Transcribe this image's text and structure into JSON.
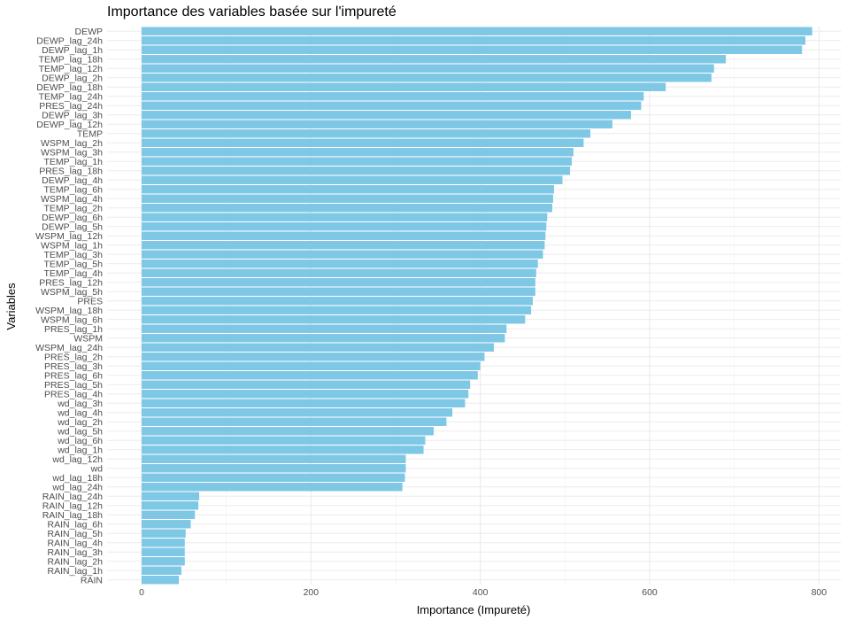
{
  "chart_data": {
    "type": "bar",
    "orientation": "horizontal",
    "title": "Importance des variables basée sur l'impureté",
    "xlabel": "Importance (Impureté)",
    "ylabel": "Variables",
    "xlim": [
      0,
      820
    ],
    "xticks": [
      0,
      200,
      400,
      600,
      800
    ],
    "grid": true,
    "bar_color": "#7EC8E6",
    "categories": [
      "DEWP",
      "DEWP_lag_24h",
      "DEWP_lag_1h",
      "TEMP_lag_18h",
      "TEMP_lag_12h",
      "DEWP_lag_2h",
      "DEWP_lag_18h",
      "TEMP_lag_24h",
      "PRES_lag_24h",
      "DEWP_lag_3h",
      "DEWP_lag_12h",
      "TEMP",
      "WSPM_lag_2h",
      "WSPM_lag_3h",
      "TEMP_lag_1h",
      "PRES_lag_18h",
      "DEWP_lag_4h",
      "TEMP_lag_6h",
      "WSPM_lag_4h",
      "TEMP_lag_2h",
      "DEWP_lag_6h",
      "DEWP_lag_5h",
      "WSPM_lag_12h",
      "WSPM_lag_1h",
      "TEMP_lag_3h",
      "TEMP_lag_5h",
      "TEMP_lag_4h",
      "PRES_lag_12h",
      "WSPM_lag_5h",
      "PRES",
      "WSPM_lag_18h",
      "WSPM_lag_6h",
      "PRES_lag_1h",
      "WSPM",
      "WSPM_lag_24h",
      "PRES_lag_2h",
      "PRES_lag_3h",
      "PRES_lag_6h",
      "PRES_lag_5h",
      "PRES_lag_4h",
      "wd_lag_3h",
      "wd_lag_4h",
      "wd_lag_2h",
      "wd_lag_5h",
      "wd_lag_6h",
      "wd_lag_1h",
      "wd_lag_12h",
      "wd",
      "wd_lag_18h",
      "wd_lag_24h",
      "RAIN_lag_24h",
      "RAIN_lag_12h",
      "RAIN_lag_18h",
      "RAIN_lag_6h",
      "RAIN_lag_5h",
      "RAIN_lag_4h",
      "RAIN_lag_3h",
      "RAIN_lag_2h",
      "RAIN_lag_1h",
      "RAIN"
    ],
    "values": [
      792,
      784,
      780,
      690,
      676,
      673,
      619,
      593,
      590,
      578,
      556,
      530,
      522,
      510,
      508,
      506,
      497,
      487,
      486,
      485,
      479,
      478,
      477,
      476,
      474,
      468,
      466,
      465,
      465,
      462,
      460,
      453,
      431,
      429,
      416,
      405,
      400,
      397,
      388,
      386,
      382,
      367,
      360,
      345,
      335,
      333,
      312,
      312,
      311,
      308,
      68,
      67,
      63,
      58,
      52,
      51,
      51,
      51,
      47,
      44
    ]
  }
}
